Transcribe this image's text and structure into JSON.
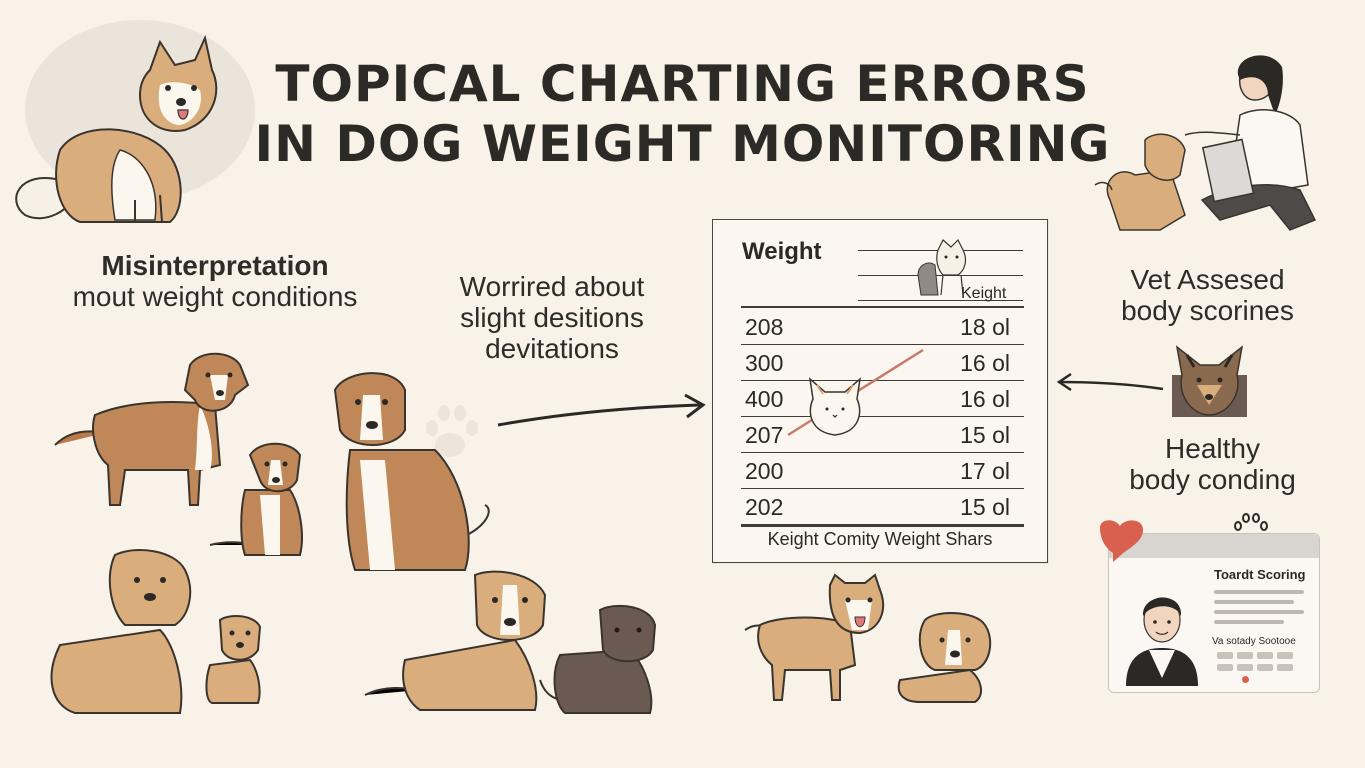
{
  "title": {
    "line1": "TOPICAL CHARTING ERRORS",
    "line2": "IN DOG WEIGHT MONITORING"
  },
  "captions": {
    "misinterpretation": {
      "line1": "Misinterpretation",
      "line2": "mout weight conditions"
    },
    "worried": {
      "line1": "Worrired about",
      "line2": "slight desitions",
      "line3": "devitations"
    },
    "vet": {
      "line1": "Vet Assesed",
      "line2": "body scorines"
    },
    "healthy": {
      "line1": "Healthy",
      "line2": "body conding"
    }
  },
  "weight_chart": {
    "title": "Weight",
    "column_header": "Keight",
    "rows": [
      {
        "left": "208",
        "right": "18 ol"
      },
      {
        "left": "300",
        "right": "16 ol"
      },
      {
        "left": "400",
        "right": "16 ol"
      },
      {
        "left": "207",
        "right": "15 ol"
      },
      {
        "left": "200",
        "right": "17 ol"
      },
      {
        "left": "202",
        "right": "15 ol"
      }
    ],
    "footer": "Keight Comity Weight Shars"
  },
  "scoring_card": {
    "title": "Toardt Scoring",
    "subtitle": "Va sotady Sootooe"
  },
  "colors": {
    "background": "#f8f2e8",
    "dog_tan": "#d9ad7c",
    "dog_brown": "#b97a4b",
    "dog_dark": "#6b5a52",
    "accent_red": "#d9604f",
    "ink": "#2b2926"
  }
}
